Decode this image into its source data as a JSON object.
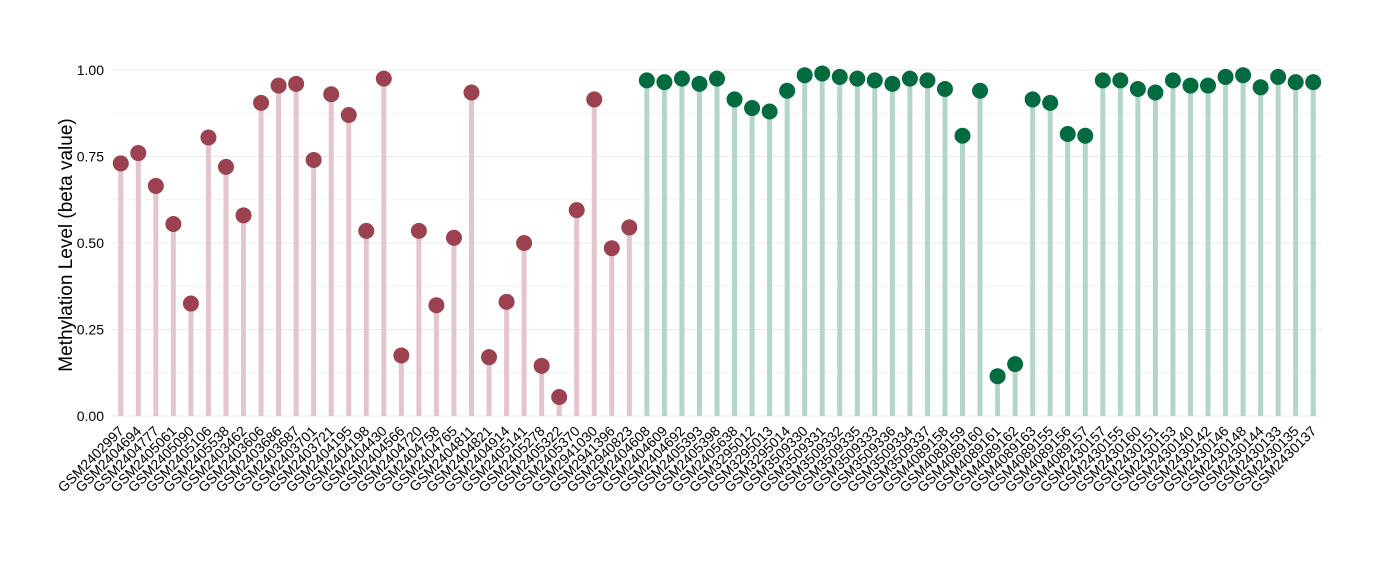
{
  "chart_data": {
    "type": "lollipop",
    "y_label": "Methylation Level (beta value)",
    "categories": [
      "GSM2402997",
      "GSM2404694",
      "GSM2404777",
      "GSM2405061",
      "GSM2405090",
      "GSM2405106",
      "GSM2405538",
      "GSM2403462",
      "GSM2403606",
      "GSM2403686",
      "GSM2403687",
      "GSM2403701",
      "GSM2403721",
      "GSM2404195",
      "GSM2404198",
      "GSM2404430",
      "GSM2404566",
      "GSM2404720",
      "GSM2404758",
      "GSM2404765",
      "GSM2404811",
      "GSM2404821",
      "GSM2404914",
      "GSM2405141",
      "GSM2405278",
      "GSM2405322",
      "GSM2405370",
      "GSM2941030",
      "GSM2941396",
      "GSM2940823",
      "GSM2404608",
      "GSM2404609",
      "GSM2404692",
      "GSM2405393",
      "GSM2405398",
      "GSM2405638",
      "GSM3295012",
      "GSM3295013",
      "GSM3295014",
      "GSM3509330",
      "GSM3509331",
      "GSM3509332",
      "GSM3509335",
      "GSM3509333",
      "GSM3509336",
      "GSM3509334",
      "GSM3509337",
      "GSM4089158",
      "GSM4089159",
      "GSM4089160",
      "GSM4089161",
      "GSM4089162",
      "GSM4089163",
      "GSM4089155",
      "GSM4089156",
      "GSM4089157",
      "GSM2430157",
      "GSM2430155",
      "GSM2430160",
      "GSM2430151",
      "GSM2430153",
      "GSM2430140",
      "GSM2430142",
      "GSM2430146",
      "GSM2430148",
      "GSM2430144",
      "GSM2430133",
      "GSM2430135",
      "GSM2430137"
    ],
    "series": [
      {
        "color": "#9b4150",
        "stem_color": "#e2c6cb",
        "values": [
          0.73,
          0.76,
          0.665,
          0.555,
          0.325,
          0.805,
          0.72,
          0.58,
          0.905,
          0.955,
          0.96,
          0.74,
          0.93,
          0.87,
          0.535,
          0.975,
          0.175,
          0.535,
          0.32,
          0.515,
          0.935,
          0.17,
          0.33,
          0.5,
          0.145,
          0.055,
          0.595,
          0.915,
          0.485,
          0.545,
          null,
          null,
          null,
          null,
          null,
          null,
          null,
          null,
          null,
          null,
          null,
          null,
          null,
          null,
          null,
          null,
          null,
          null,
          null,
          null,
          null,
          null,
          null,
          null,
          null,
          null,
          null,
          null,
          null,
          null,
          null,
          null,
          null,
          null,
          null,
          null,
          null,
          null,
          null
        ]
      },
      {
        "color": "#036b40",
        "stem_color": "#b4d5c9",
        "values": [
          null,
          null,
          null,
          null,
          null,
          null,
          null,
          null,
          null,
          null,
          null,
          null,
          null,
          null,
          null,
          null,
          null,
          null,
          null,
          null,
          null,
          null,
          null,
          null,
          null,
          null,
          null,
          null,
          null,
          null,
          0.97,
          0.965,
          0.975,
          0.96,
          0.975,
          0.915,
          0.89,
          0.88,
          0.94,
          0.985,
          0.99,
          0.98,
          0.975,
          0.97,
          0.96,
          0.975,
          0.97,
          0.945,
          0.81,
          0.94,
          0.115,
          0.15,
          0.915,
          0.905,
          0.815,
          0.81,
          0.97,
          0.97,
          0.945,
          0.935,
          0.97,
          0.955,
          0.955,
          0.98,
          0.985,
          0.95,
          0.98,
          0.965,
          0.965
        ]
      }
    ],
    "ylim": [
      0,
      1
    ],
    "yticks": [
      {
        "value": 0,
        "label": "0.00"
      },
      {
        "value": 0.25,
        "label": "0.25"
      },
      {
        "value": 0.5,
        "label": "0.50"
      },
      {
        "value": 0.75,
        "label": "0.75"
      },
      {
        "value": 1,
        "label": "1.00"
      }
    ],
    "grid": true
  }
}
